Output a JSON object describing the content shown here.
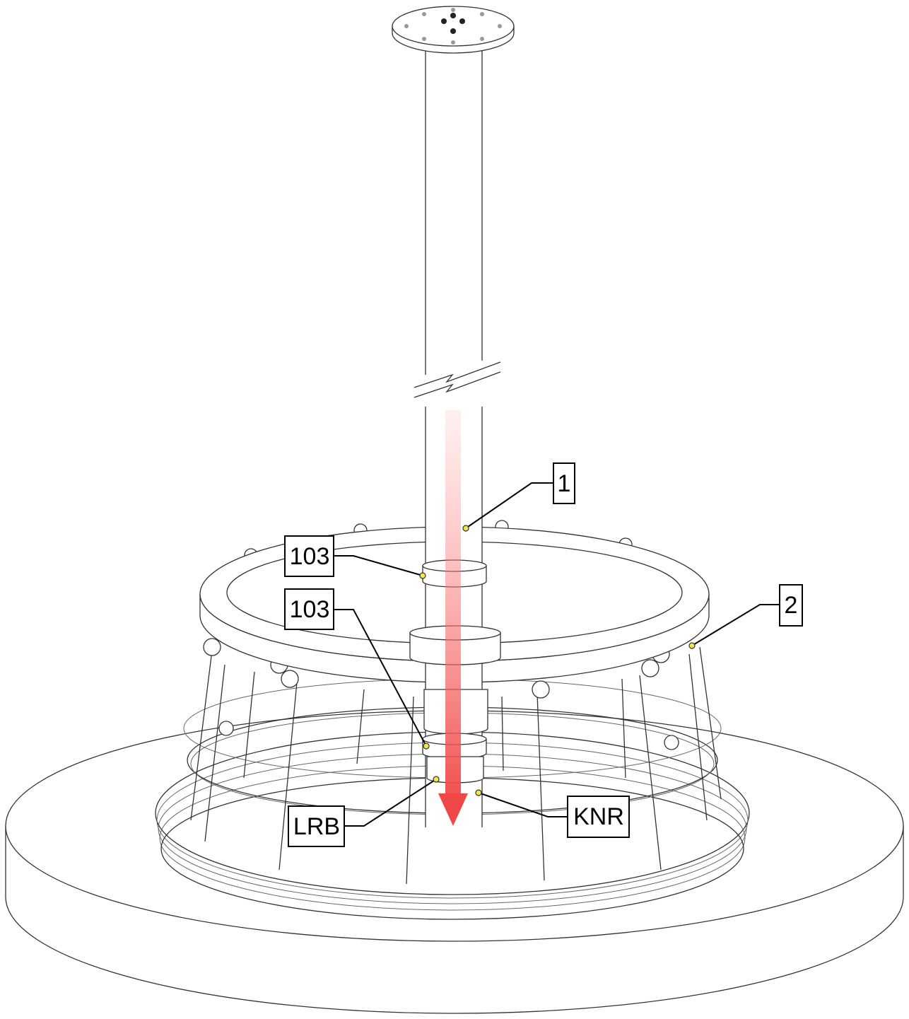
{
  "callouts": [
    {
      "label": "1"
    },
    {
      "label": "103"
    },
    {
      "label": "103"
    },
    {
      "label": "2"
    },
    {
      "label": "LRB"
    },
    {
      "label": "KNR"
    }
  ]
}
